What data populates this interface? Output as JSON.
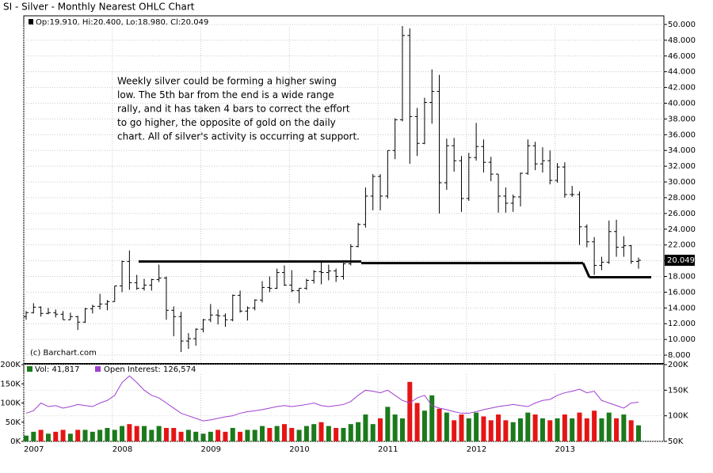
{
  "chart_data": {
    "type": "ohlc",
    "title": "SI - Silver - Monthly Nearest OHLC Chart",
    "price_header": "Op:19.910, Hi:20.400, Lo:18.980, Cl:20.049",
    "copyright": "(c) Barchart.com",
    "annotation": [
      "Weekly silver could be forming a higher swing",
      "low.  The 5th bar from the end is a wide range",
      "rally, and it has taken 4 bars to correct the effort",
      "to go higher, the opposite of gold on the daily",
      "chart.  All of silver's activity is occurring at support."
    ],
    "categories": [
      "2007",
      null,
      null,
      null,
      null,
      null,
      null,
      null,
      null,
      null,
      null,
      null,
      "2008",
      null,
      null,
      null,
      null,
      null,
      null,
      null,
      null,
      null,
      null,
      null,
      "2009",
      null,
      null,
      null,
      null,
      null,
      null,
      null,
      null,
      null,
      null,
      null,
      "2010",
      null,
      null,
      null,
      null,
      null,
      null,
      null,
      null,
      null,
      null,
      null,
      "2011",
      null,
      null,
      null,
      null,
      null,
      null,
      null,
      null,
      null,
      null,
      null,
      "2012",
      null,
      null,
      null,
      null,
      null,
      null,
      null,
      null,
      null,
      null,
      null,
      "2013",
      null,
      null,
      null,
      null,
      null,
      null,
      null,
      null,
      null,
      null,
      null
    ],
    "ohlc": {
      "color": "#000000",
      "open": [
        12.9,
        13.4,
        14.1,
        13.3,
        13.4,
        13.2,
        12.5,
        12.9,
        12.2,
        13.9,
        14.2,
        14.5,
        14.8,
        16.8,
        19.9,
        17.2,
        16.5,
        16.9,
        17.6,
        17.8,
        13.7,
        12.9,
        9.8,
        10.1,
        11.3,
        12.5,
        13.1,
        13.0,
        12.5,
        15.6,
        13.6,
        14.0,
        15.0,
        16.6,
        16.5,
        18.5,
        16.9,
        16.2,
        16.5,
        17.5,
        18.6,
        18.5,
        18.7,
        18.0,
        19.6,
        21.8,
        24.6,
        28.2,
        30.7,
        28.2,
        34.0,
        37.9,
        48.6,
        38.3,
        34.9,
        40.1,
        41.5,
        29.9,
        34.6,
        32.7,
        27.9,
        33.1,
        34.5,
        32.5,
        31.0,
        28.2,
        27.3,
        28.1,
        31.1,
        34.6,
        32.3,
        32.7,
        30.2,
        31.9,
        28.4,
        28.4,
        24.3,
        22.4,
        19.4,
        19.8,
        23.7,
        21.7,
        21.9,
        19.91
      ],
      "high": [
        13.6,
        14.6,
        14.2,
        14.0,
        13.8,
        13.6,
        13.4,
        13.0,
        14.0,
        14.4,
        15.8,
        15.0,
        16.8,
        20.0,
        21.3,
        18.2,
        17.7,
        17.7,
        19.5,
        18.0,
        14.2,
        13.5,
        10.8,
        11.4,
        12.6,
        14.5,
        13.8,
        13.3,
        15.7,
        16.2,
        14.2,
        15.1,
        17.4,
        18.0,
        19.0,
        19.4,
        18.8,
        16.5,
        17.7,
        18.8,
        19.8,
        19.5,
        19.0,
        19.7,
        22.1,
        24.8,
        29.3,
        31.0,
        31.0,
        34.0,
        38.1,
        49.8,
        49.5,
        39.4,
        40.7,
        44.3,
        43.6,
        35.5,
        35.6,
        33.3,
        33.7,
        37.5,
        35.4,
        33.2,
        31.0,
        29.3,
        28.4,
        31.2,
        35.4,
        35.1,
        34.4,
        34.0,
        32.4,
        32.5,
        29.5,
        28.8,
        24.6,
        23.0,
        20.5,
        25.1,
        25.2,
        23.1,
        22.0,
        20.4
      ],
      "low": [
        12.5,
        13.3,
        12.9,
        13.2,
        12.8,
        12.5,
        12.5,
        11.2,
        12.1,
        13.3,
        13.8,
        13.7,
        14.8,
        16.0,
        16.3,
        16.3,
        16.2,
        16.2,
        17.3,
        12.5,
        10.4,
        8.4,
        8.8,
        9.2,
        10.9,
        12.2,
        11.9,
        11.6,
        12.3,
        13.4,
        12.4,
        13.7,
        14.7,
        16.0,
        16.4,
        16.8,
        16.0,
        14.6,
        16.3,
        17.1,
        17.0,
        17.5,
        17.3,
        17.6,
        19.4,
        21.7,
        24.2,
        26.4,
        26.4,
        27.9,
        32.9,
        37.7,
        32.3,
        33.3,
        34.8,
        37.4,
        26.0,
        29.0,
        31.3,
        26.2,
        27.6,
        32.7,
        31.2,
        30.1,
        26.1,
        26.1,
        26.2,
        26.9,
        30.9,
        31.5,
        31.2,
        29.7,
        29.9,
        28.0,
        28.1,
        22.0,
        21.7,
        18.2,
        18.8,
        19.6,
        20.5,
        20.5,
        19.6,
        18.98
      ],
      "close": [
        13.4,
        14.1,
        13.3,
        13.4,
        13.2,
        12.5,
        12.9,
        12.2,
        13.9,
        14.2,
        14.5,
        14.8,
        16.8,
        19.9,
        17.2,
        16.5,
        16.9,
        17.6,
        17.8,
        13.7,
        12.9,
        9.8,
        10.1,
        11.3,
        12.5,
        13.1,
        13.0,
        12.5,
        15.6,
        13.6,
        14.0,
        15.0,
        16.6,
        16.5,
        18.5,
        16.9,
        16.2,
        16.5,
        17.5,
        18.6,
        18.5,
        18.7,
        18.0,
        19.6,
        21.8,
        24.6,
        28.2,
        30.7,
        28.2,
        34.0,
        37.9,
        48.6,
        38.3,
        34.9,
        40.1,
        41.5,
        29.9,
        34.6,
        32.7,
        27.9,
        33.1,
        34.5,
        32.5,
        31.0,
        28.2,
        27.3,
        28.1,
        31.1,
        34.6,
        32.3,
        32.7,
        30.2,
        31.9,
        28.4,
        28.4,
        24.3,
        22.4,
        19.4,
        19.8,
        23.7,
        21.7,
        21.9,
        19.9,
        20.049
      ]
    },
    "last_price": {
      "value": 20.049,
      "label": "20.049"
    },
    "support_levels": [
      19.9,
      19.7,
      17.9
    ],
    "ylim": [
      7.1,
      51.1
    ],
    "yticks": [
      {
        "value": 8,
        "label": "8.000"
      },
      {
        "value": 10,
        "label": "10.000"
      },
      {
        "value": 12,
        "label": "12.000"
      },
      {
        "value": 14,
        "label": "14.000"
      },
      {
        "value": 16,
        "label": "16.000"
      },
      {
        "value": 18,
        "label": "18.000"
      },
      {
        "value": 20,
        "label": "20.000"
      },
      {
        "value": 22,
        "label": "22.000"
      },
      {
        "value": 24,
        "label": "24.000"
      },
      {
        "value": 26,
        "label": "26.000"
      },
      {
        "value": 28,
        "label": "28.000"
      },
      {
        "value": 30,
        "label": "30.000"
      },
      {
        "value": 32,
        "label": "32.000"
      },
      {
        "value": 34,
        "label": "34.000"
      },
      {
        "value": 36,
        "label": "36.000"
      },
      {
        "value": 38,
        "label": "38.000"
      },
      {
        "value": 40,
        "label": "40.000"
      },
      {
        "value": 42,
        "label": "42.000"
      },
      {
        "value": 44,
        "label": "44.000"
      },
      {
        "value": 46,
        "label": "46.000"
      },
      {
        "value": 48,
        "label": "48.000"
      },
      {
        "value": 50,
        "label": "50.000"
      }
    ],
    "volume": {
      "header": "Vol: 41,817",
      "up_color": "#1b7a1b",
      "down_color": "#e51515",
      "values": [
        15,
        25,
        30,
        20,
        25,
        30,
        20,
        30,
        30,
        25,
        30,
        35,
        30,
        40,
        45,
        40,
        40,
        30,
        40,
        35,
        35,
        25,
        30,
        25,
        20,
        25,
        30,
        25,
        35,
        25,
        30,
        30,
        40,
        35,
        40,
        45,
        35,
        30,
        40,
        45,
        50,
        40,
        35,
        35,
        45,
        50,
        70,
        45,
        60,
        90,
        70,
        60,
        155,
        100,
        80,
        120,
        85,
        75,
        55,
        70,
        60,
        75,
        65,
        55,
        70,
        55,
        50,
        60,
        75,
        70,
        60,
        55,
        60,
        70,
        60,
        75,
        60,
        80,
        60,
        75,
        60,
        70,
        55,
        41.817
      ]
    },
    "vlim": [
      0,
      200
    ],
    "vticks": [
      {
        "value": 0,
        "label": "0K"
      },
      {
        "value": 50,
        "label": "50K"
      },
      {
        "value": 100,
        "label": "100K"
      },
      {
        "value": 150,
        "label": "150K"
      },
      {
        "value": 200,
        "label": "200K"
      }
    ],
    "open_interest": {
      "header": "Open Interest: 126,574",
      "color": "#a040d0",
      "values": [
        105,
        110,
        125,
        118,
        120,
        115,
        118,
        122,
        120,
        118,
        125,
        130,
        140,
        165,
        178,
        165,
        150,
        140,
        135,
        125,
        115,
        105,
        100,
        95,
        90,
        92,
        95,
        98,
        100,
        105,
        108,
        110,
        112,
        115,
        118,
        120,
        118,
        120,
        122,
        125,
        120,
        118,
        120,
        122,
        128,
        140,
        150,
        148,
        145,
        150,
        140,
        130,
        125,
        135,
        140,
        120,
        115,
        112,
        108,
        105,
        105,
        108,
        112,
        115,
        118,
        120,
        122,
        120,
        118,
        125,
        130,
        132,
        140,
        145,
        148,
        152,
        145,
        148,
        130,
        125,
        120,
        115,
        125,
        126.574
      ]
    },
    "y2lim": [
      50,
      200
    ],
    "y2ticks": [
      {
        "value": 50,
        "label": "50K"
      },
      {
        "value": 100,
        "label": "100K"
      },
      {
        "value": 150,
        "label": "150K"
      },
      {
        "value": 200,
        "label": "200K"
      }
    ]
  }
}
